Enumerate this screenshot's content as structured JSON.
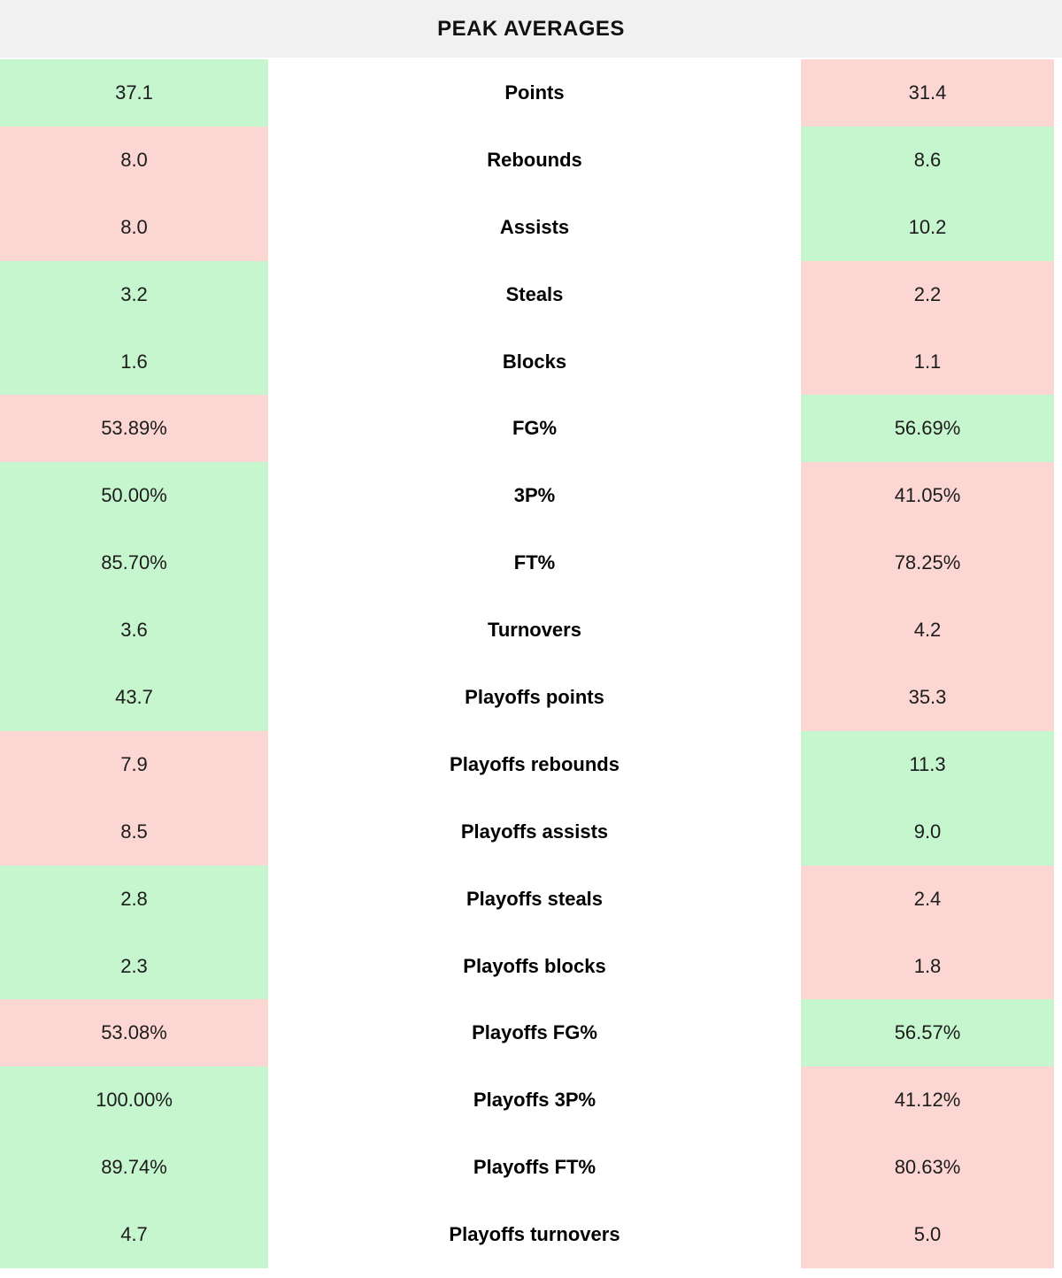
{
  "header": {
    "title": "PEAK AVERAGES"
  },
  "colors": {
    "header_bg": "#f1f1f1",
    "better_bg": "#c6f6cd",
    "worse_bg": "#fcd6d3",
    "value_text": "#1c1c1c",
    "label_text": "#000000"
  },
  "legend_note": "green = better value, pink = worse value",
  "chart_data": {
    "type": "table",
    "title": "PEAK AVERAGES",
    "columns": [
      "left_value",
      "stat",
      "right_value"
    ],
    "rows": [
      {
        "stat": "Points",
        "left": "37.1",
        "right": "31.4",
        "left_better": true
      },
      {
        "stat": "Rebounds",
        "left": "8.0",
        "right": "8.6",
        "left_better": false
      },
      {
        "stat": "Assists",
        "left": "8.0",
        "right": "10.2",
        "left_better": false
      },
      {
        "stat": "Steals",
        "left": "3.2",
        "right": "2.2",
        "left_better": true
      },
      {
        "stat": "Blocks",
        "left": "1.6",
        "right": "1.1",
        "left_better": true
      },
      {
        "stat": "FG%",
        "left": "53.89%",
        "right": "56.69%",
        "left_better": false
      },
      {
        "stat": "3P%",
        "left": "50.00%",
        "right": "41.05%",
        "left_better": true
      },
      {
        "stat": "FT%",
        "left": "85.70%",
        "right": "78.25%",
        "left_better": true
      },
      {
        "stat": "Turnovers",
        "left": "3.6",
        "right": "4.2",
        "left_better": true
      },
      {
        "stat": "Playoffs points",
        "left": "43.7",
        "right": "35.3",
        "left_better": true
      },
      {
        "stat": "Playoffs rebounds",
        "left": "7.9",
        "right": "11.3",
        "left_better": false
      },
      {
        "stat": "Playoffs assists",
        "left": "8.5",
        "right": "9.0",
        "left_better": false
      },
      {
        "stat": "Playoffs steals",
        "left": "2.8",
        "right": "2.4",
        "left_better": true
      },
      {
        "stat": "Playoffs blocks",
        "left": "2.3",
        "right": "1.8",
        "left_better": true
      },
      {
        "stat": "Playoffs FG%",
        "left": "53.08%",
        "right": "56.57%",
        "left_better": false
      },
      {
        "stat": "Playoffs 3P%",
        "left": "100.00%",
        "right": "41.12%",
        "left_better": true
      },
      {
        "stat": "Playoffs FT%",
        "left": "89.74%",
        "right": "80.63%",
        "left_better": true
      },
      {
        "stat": "Playoffs turnovers",
        "left": "4.7",
        "right": "5.0",
        "left_better": true
      }
    ]
  }
}
